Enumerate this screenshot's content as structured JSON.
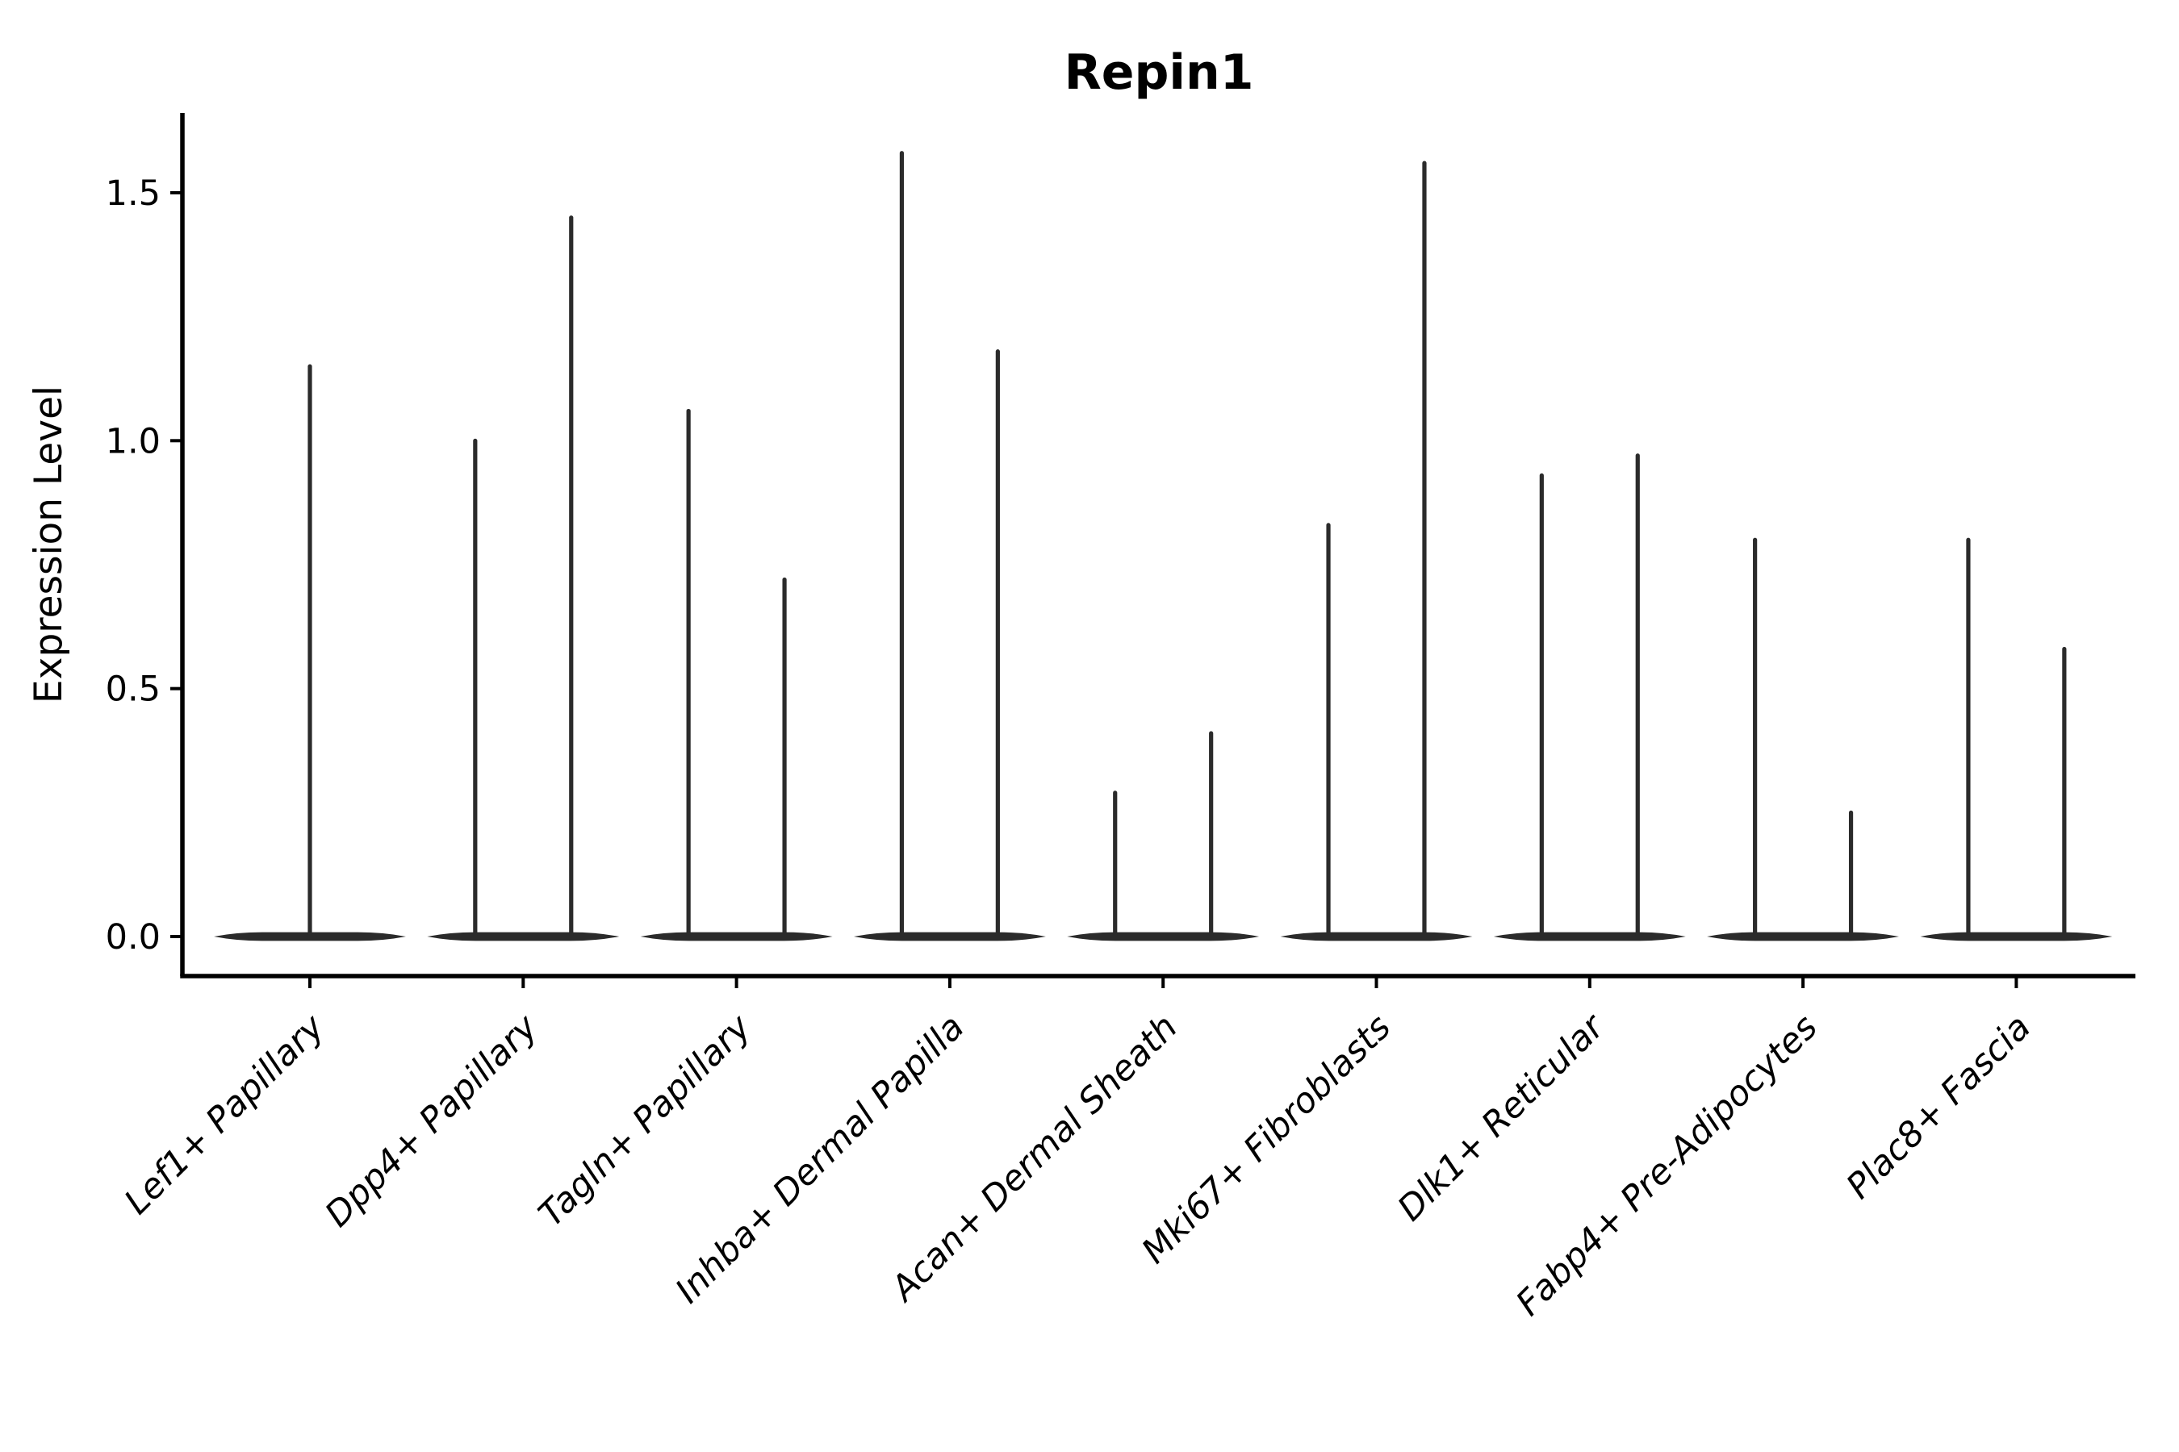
{
  "chart_data": {
    "type": "violin",
    "title": "Repin1",
    "ylabel": "Expression Level",
    "xlabel": "",
    "y_ticks": [
      0.0,
      0.5,
      1.0,
      1.5
    ],
    "y_tick_labels": [
      "0.0",
      "0.5",
      "1.0",
      "1.5"
    ],
    "ylim": [
      -0.07,
      1.66
    ],
    "grid": false,
    "legend": "none",
    "x_tick_rotation_deg": 45,
    "line_color": "#2b2b2b",
    "axis_color": "#000000",
    "group_width_units": 0.9,
    "categories": [
      "Lef1+ Papillary",
      "Dpp4+ Papillary",
      "Tagln+ Papillary",
      "Inhba+ Dermal Papilla",
      "Acan+ Dermal Sheath",
      "Mki67+ Fibroblasts",
      "Dlk1+ Reticular",
      "Fabp4+ Pre-Adipocytes",
      "Plac8+ Fascia"
    ],
    "groups": [
      {
        "category": "Lef1+ Papillary",
        "base_half_width": 0.45,
        "spikes": [
          {
            "x_offset": 0.0,
            "max": 1.15
          }
        ]
      },
      {
        "category": "Dpp4+ Papillary",
        "base_half_width": 0.45,
        "spikes": [
          {
            "x_offset": -0.225,
            "max": 1.0
          },
          {
            "x_offset": 0.225,
            "max": 1.45
          }
        ]
      },
      {
        "category": "Tagln+ Papillary",
        "base_half_width": 0.45,
        "spikes": [
          {
            "x_offset": -0.225,
            "max": 1.06
          },
          {
            "x_offset": 0.225,
            "max": 0.72
          }
        ]
      },
      {
        "category": "Inhba+ Dermal Papilla",
        "base_half_width": 0.45,
        "spikes": [
          {
            "x_offset": -0.225,
            "max": 1.58
          },
          {
            "x_offset": 0.225,
            "max": 1.18
          }
        ]
      },
      {
        "category": "Acan+ Dermal Sheath",
        "base_half_width": 0.45,
        "spikes": [
          {
            "x_offset": -0.225,
            "max": 0.29
          },
          {
            "x_offset": 0.225,
            "max": 0.41
          }
        ]
      },
      {
        "category": "Mki67+ Fibroblasts",
        "base_half_width": 0.45,
        "spikes": [
          {
            "x_offset": -0.225,
            "max": 0.83
          },
          {
            "x_offset": 0.225,
            "max": 1.56
          }
        ]
      },
      {
        "category": "Dlk1+ Reticular",
        "base_half_width": 0.45,
        "spikes": [
          {
            "x_offset": -0.225,
            "max": 0.93
          },
          {
            "x_offset": 0.225,
            "max": 0.97
          }
        ]
      },
      {
        "category": "Fabp4+ Pre-Adipocytes",
        "base_half_width": 0.45,
        "spikes": [
          {
            "x_offset": -0.225,
            "max": 0.8
          },
          {
            "x_offset": 0.225,
            "max": 0.25
          }
        ]
      },
      {
        "category": "Plac8+ Fascia",
        "base_half_width": 0.45,
        "spikes": [
          {
            "x_offset": -0.225,
            "max": 0.8
          },
          {
            "x_offset": 0.225,
            "max": 0.58
          }
        ]
      }
    ]
  }
}
